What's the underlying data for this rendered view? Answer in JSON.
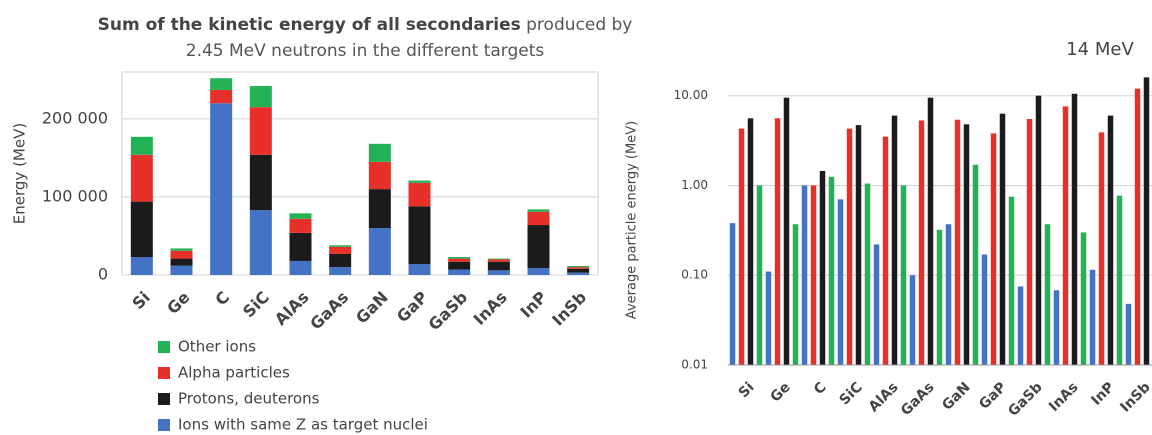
{
  "chart_data": [
    {
      "type": "stacked_bar",
      "title": "Sum of the kinetic energy of all secondaries",
      "subtitle": "produced by 2.45 MeV neutrons in the different targets",
      "ylabel": "Energy (MeV)",
      "categories": [
        "Si",
        "Ge",
        "C",
        "SiC",
        "AlAs",
        "GaAs",
        "GaN",
        "GaP",
        "GaSb",
        "InAs",
        "InP",
        "InSb"
      ],
      "series": [
        {
          "name": "Ions with same Z as target nuclei",
          "color": "#4472c4",
          "values": [
            23000,
            12000,
            220000,
            83000,
            18000,
            10000,
            60000,
            14000,
            7000,
            6000,
            9000,
            3000
          ]
        },
        {
          "name": "Protons, deuterons",
          "color": "#1b1b1b",
          "values": [
            71000,
            9000,
            0,
            71000,
            36000,
            17000,
            50000,
            74000,
            10000,
            11000,
            55000,
            5000
          ]
        },
        {
          "name": "Alpha particles",
          "color": "#e8302a",
          "values": [
            60000,
            10000,
            17000,
            61000,
            18000,
            9000,
            35000,
            30000,
            4000,
            3000,
            17000,
            2000
          ]
        },
        {
          "name": "Other ions",
          "color": "#23b155",
          "values": [
            23000,
            3000,
            15000,
            27000,
            7000,
            2000,
            23000,
            3000,
            2000,
            1000,
            3000,
            1500
          ]
        }
      ],
      "ylim": [
        0,
        260000
      ],
      "yticks": [
        0,
        {
          "value": 100000,
          "label": "100 000"
        },
        {
          "value": 200000,
          "label": "200 000"
        }
      ],
      "grid": true,
      "legend": "bottom"
    },
    {
      "type": "grouped_bar",
      "title": "14 MeV",
      "ylabel": "Average particle energy (MeV)",
      "categories": [
        "Si",
        "Ge",
        "C",
        "SiC",
        "AlAs",
        "GaAs",
        "GaN",
        "GaP",
        "GaSb",
        "InAs",
        "InP",
        "InSb"
      ],
      "series": [
        {
          "color": "#4472c4",
          "values": [
            0.38,
            0.11,
            1.0,
            0.7,
            0.22,
            0.1,
            0.37,
            0.17,
            0.075,
            0.068,
            0.115,
            0.048
          ]
        },
        {
          "color": "#e8302a",
          "values": [
            4.3,
            5.6,
            1.0,
            4.3,
            3.5,
            5.3,
            5.4,
            3.8,
            5.5,
            7.6,
            3.9,
            12
          ]
        },
        {
          "color": "#1b1b1b",
          "values": [
            5.6,
            9.5,
            1.45,
            4.7,
            6.0,
            9.5,
            4.8,
            6.3,
            10,
            10.5,
            6.0,
            16
          ]
        },
        {
          "color": "#23b155",
          "values": [
            1.0,
            0.37,
            1.25,
            1.05,
            1.0,
            0.32,
            1.7,
            0.75,
            0.37,
            0.3,
            0.77,
            null
          ]
        }
      ],
      "ylim": [
        0.01,
        17
      ],
      "log": true,
      "yticks": [
        0.01,
        {
          "value": 0.1,
          "label": "0.10"
        },
        {
          "value": 1,
          "label": "1.00"
        },
        {
          "value": 10,
          "label": "10.00"
        }
      ],
      "grid": true
    }
  ]
}
